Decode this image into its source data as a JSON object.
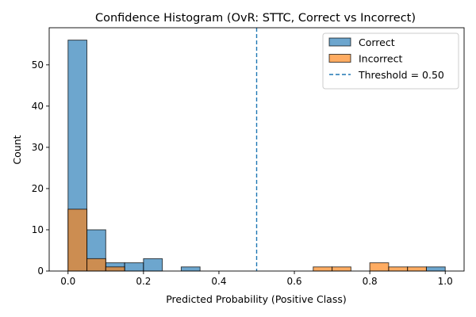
{
  "chart_data": {
    "type": "bar",
    "subtype": "overlapping-histogram",
    "title": "Confidence Histogram (OvR: STTC, Correct vs Incorrect)",
    "xlabel": "Predicted Probability (Positive Class)",
    "ylabel": "Count",
    "xlim": [
      -0.05,
      1.05
    ],
    "ylim": [
      0,
      59
    ],
    "xticks": [
      0.0,
      0.2,
      0.4,
      0.6,
      0.8,
      1.0
    ],
    "xtick_labels": [
      "0.0",
      "0.2",
      "0.4",
      "0.6",
      "0.8",
      "1.0"
    ],
    "yticks": [
      0,
      10,
      20,
      30,
      40,
      50
    ],
    "ytick_labels": [
      "0",
      "10",
      "20",
      "30",
      "40",
      "50"
    ],
    "bin_edges": [
      0.0,
      0.05,
      0.1,
      0.15,
      0.2,
      0.25,
      0.3,
      0.35,
      0.4,
      0.45,
      0.5,
      0.55,
      0.6,
      0.65,
      0.7,
      0.75,
      0.8,
      0.85,
      0.9,
      0.95,
      1.0
    ],
    "series": [
      {
        "name": "Correct",
        "color": "#1f77b4",
        "alpha": 0.65,
        "counts": [
          56,
          10,
          2,
          2,
          3,
          0,
          1,
          0,
          0,
          0,
          0,
          0,
          0,
          0,
          0,
          0,
          0,
          0,
          0,
          1
        ]
      },
      {
        "name": "Incorrect",
        "color": "#ff7f0e",
        "alpha": 0.65,
        "counts": [
          15,
          3,
          1,
          0,
          0,
          0,
          0,
          0,
          0,
          0,
          0,
          0,
          0,
          1,
          1,
          0,
          2,
          1,
          1,
          0
        ]
      }
    ],
    "threshold": {
      "label": "Threshold = 0.50",
      "value": 0.5,
      "color": "#1f77b4",
      "style": "dashed"
    },
    "legend": {
      "position": "top-right",
      "entries": [
        "Correct",
        "Incorrect",
        "Threshold = 0.50"
      ]
    },
    "grid": false
  }
}
